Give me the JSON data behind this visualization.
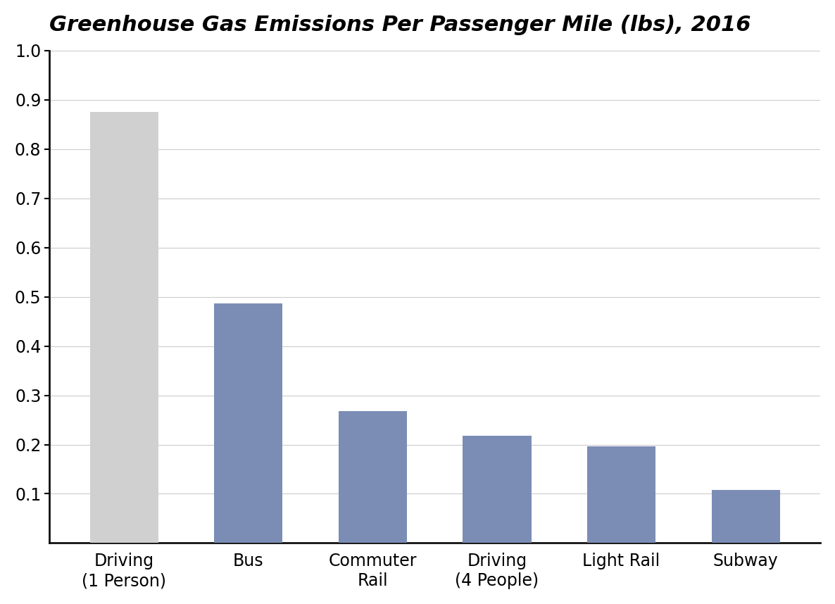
{
  "title": "Greenhouse Gas Emissions Per Passenger Mile (lbs), 2016",
  "categories": [
    "Driving\n(1 Person)",
    "Bus",
    "Commuter\nRail",
    "Driving\n(4 People)",
    "Light Rail",
    "Subway"
  ],
  "values": [
    0.875,
    0.487,
    0.268,
    0.218,
    0.197,
    0.108
  ],
  "bar_colors": [
    "#d0d0d0",
    "#7b8db5",
    "#7b8db5",
    "#7b8db5",
    "#7b8db5",
    "#7b8db5"
  ],
  "ylim": [
    0,
    1.0
  ],
  "yticks": [
    0.1,
    0.2,
    0.3,
    0.4,
    0.5,
    0.6,
    0.7,
    0.8,
    0.9,
    1.0
  ],
  "background_color": "#ffffff",
  "title_fontsize": 22,
  "tick_fontsize": 17,
  "bar_width": 0.55,
  "title_style": "italic",
  "title_weight": "bold",
  "grid_color": "#cccccc",
  "spine_color": "#111111"
}
